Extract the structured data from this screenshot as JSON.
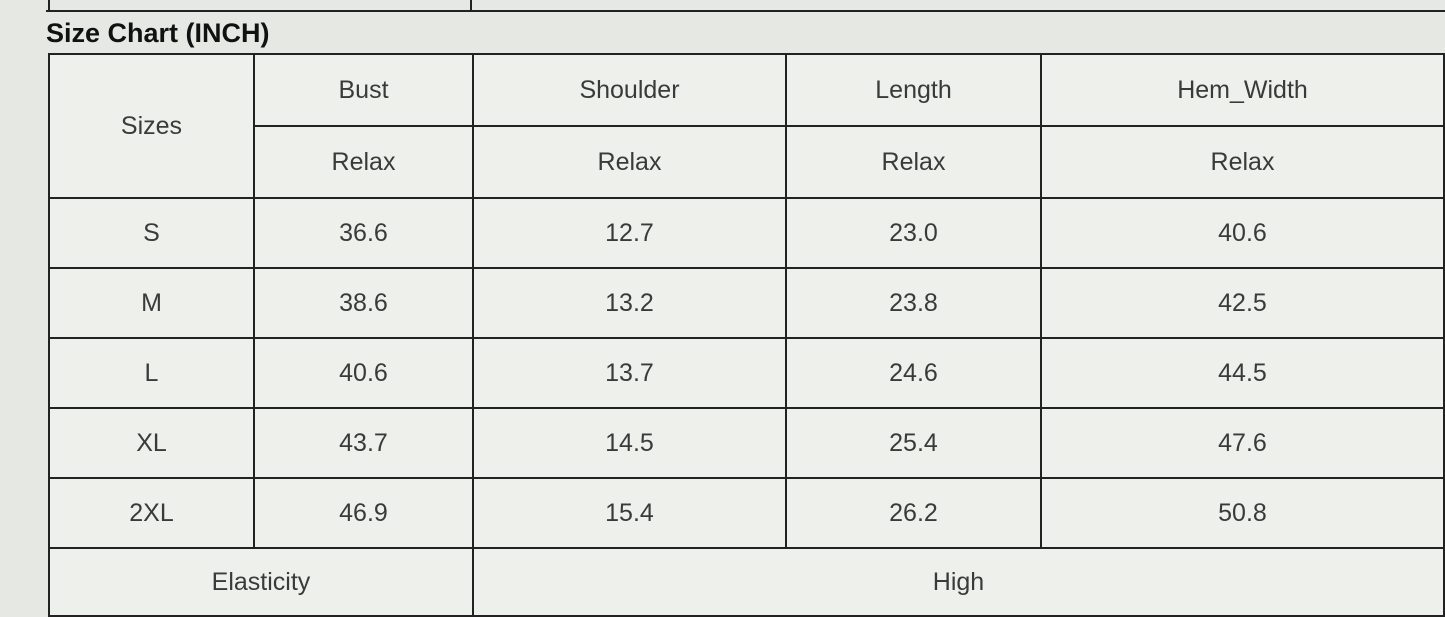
{
  "title": "Size Chart (INCH)",
  "headers": {
    "sizes": "Sizes",
    "columns": [
      "Bust",
      "Shoulder",
      "Length",
      "Hem_Width"
    ],
    "sub": "Relax"
  },
  "rows": [
    {
      "size": "S",
      "values": [
        "36.6",
        "12.7",
        "23.0",
        "40.6"
      ]
    },
    {
      "size": "M",
      "values": [
        "38.6",
        "13.2",
        "23.8",
        "42.5"
      ]
    },
    {
      "size": "L",
      "values": [
        "40.6",
        "13.7",
        "24.6",
        "44.5"
      ]
    },
    {
      "size": "XL",
      "values": [
        "43.7",
        "14.5",
        "25.4",
        "47.6"
      ]
    },
    {
      "size": "2XL",
      "values": [
        "46.9",
        "15.4",
        "26.2",
        "50.8"
      ]
    }
  ],
  "elasticity": {
    "label": "Elasticity",
    "value": "High"
  }
}
